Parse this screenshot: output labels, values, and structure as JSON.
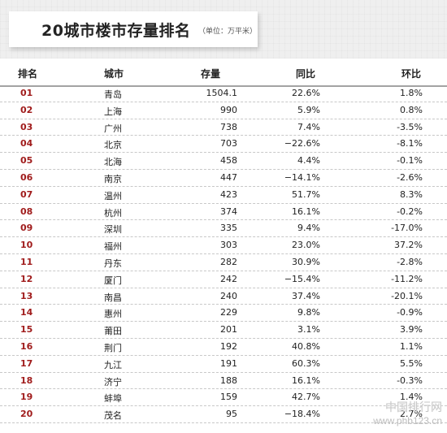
{
  "title": "20城市楼市存量排名",
  "unit": "（单位：万平米）",
  "columns": [
    "排名",
    "城市",
    "存量",
    "同比",
    "环比"
  ],
  "rows": [
    [
      "01",
      "青岛",
      "1504.1",
      "22.6%",
      "1.8%"
    ],
    [
      "02",
      "上海",
      "990",
      "5.9%",
      "0.8%"
    ],
    [
      "03",
      "广州",
      "738",
      "7.4%",
      "-3.5%"
    ],
    [
      "04",
      "北京",
      "703",
      "−22.6%",
      "-8.1%"
    ],
    [
      "05",
      "北海",
      "458",
      "4.4%",
      "-0.1%"
    ],
    [
      "06",
      "南京",
      "447",
      "−14.1%",
      "-2.6%"
    ],
    [
      "07",
      "温州",
      "423",
      "51.7%",
      "8.3%"
    ],
    [
      "08",
      "杭州",
      "374",
      "16.1%",
      "-0.2%"
    ],
    [
      "09",
      "深圳",
      "335",
      "9.4%",
      "-17.0%"
    ],
    [
      "10",
      "福州",
      "303",
      "23.0%",
      "37.2%"
    ],
    [
      "11",
      "丹东",
      "282",
      "30.9%",
      "-2.8%"
    ],
    [
      "12",
      "厦门",
      "242",
      "−15.4%",
      "-11.2%"
    ],
    [
      "13",
      "南昌",
      "240",
      "37.4%",
      "-20.1%"
    ],
    [
      "14",
      "惠州",
      "229",
      "9.8%",
      "-0.9%"
    ],
    [
      "15",
      "莆田",
      "201",
      "3.1%",
      "3.9%"
    ],
    [
      "16",
      "荆门",
      "192",
      "40.8%",
      "1.1%"
    ],
    [
      "17",
      "九江",
      "191",
      "60.3%",
      "5.5%"
    ],
    [
      "18",
      "济宁",
      "188",
      "16.1%",
      "-0.3%"
    ],
    [
      "19",
      "蚌埠",
      "159",
      "42.7%",
      "1.4%"
    ],
    [
      "20",
      "茂名",
      "95",
      "−18.4%",
      "2.7%"
    ]
  ],
  "watermark": {
    "line1": "中国排行网",
    "line2": "www.phb123.cn"
  },
  "colors": {
    "rank": "#a01c1c",
    "banner": "#efefef",
    "divider": "#a3a3a3"
  }
}
